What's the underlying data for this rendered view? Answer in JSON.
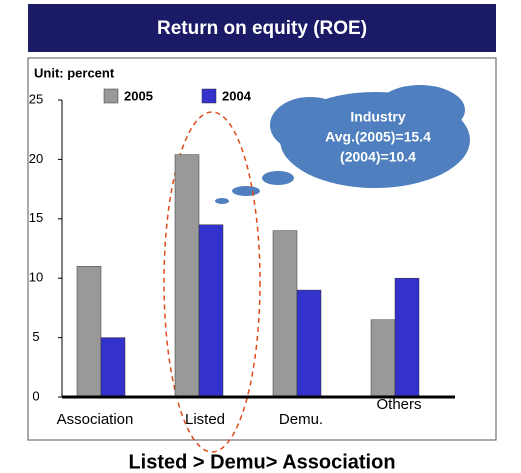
{
  "chart_data": {
    "type": "bar",
    "title": "Return on equity (ROE)",
    "unit_label": "Unit: percent",
    "categories": [
      "Association",
      "Listed",
      "Demu.",
      "Others"
    ],
    "series": [
      {
        "name": "2005",
        "color": "#999999",
        "values": [
          11,
          20.4,
          14,
          6.5
        ]
      },
      {
        "name": "2004",
        "color": "#3333cc",
        "values": [
          5,
          14.5,
          9,
          10
        ]
      }
    ],
    "ylim": [
      0,
      25
    ],
    "yticks": [
      0,
      5,
      10,
      15,
      20,
      25
    ],
    "annotation": [
      "Industry",
      "Avg.(2005)=15.4",
      "(2004)=10.4"
    ],
    "caption": "Listed > Demu> Association"
  }
}
